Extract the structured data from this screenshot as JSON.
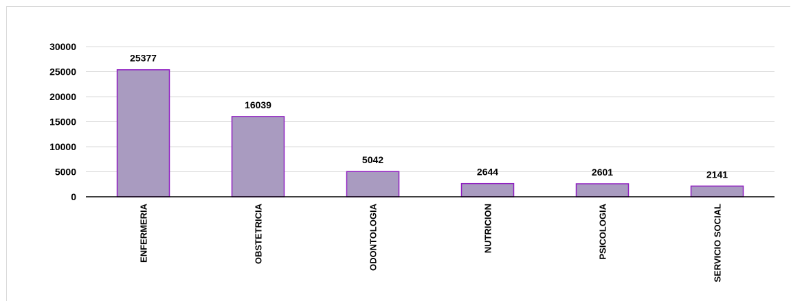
{
  "chart_data": {
    "type": "bar",
    "categories": [
      "ENFERMERIA",
      "OBSTETRICIA",
      "ODONTOLOGIA",
      "NUTRICION",
      "PSICOLOGIA",
      "SERVICIO SOCIAL"
    ],
    "values": [
      25377,
      16039,
      5042,
      2644,
      2601,
      2141
    ],
    "ylim": [
      0,
      30000
    ],
    "yticks": [
      0,
      5000,
      10000,
      15000,
      20000,
      25000,
      30000
    ],
    "grid": true,
    "legend": "none",
    "bar_fill": "#a99bc0",
    "bar_stroke": "#8e1cc0"
  }
}
